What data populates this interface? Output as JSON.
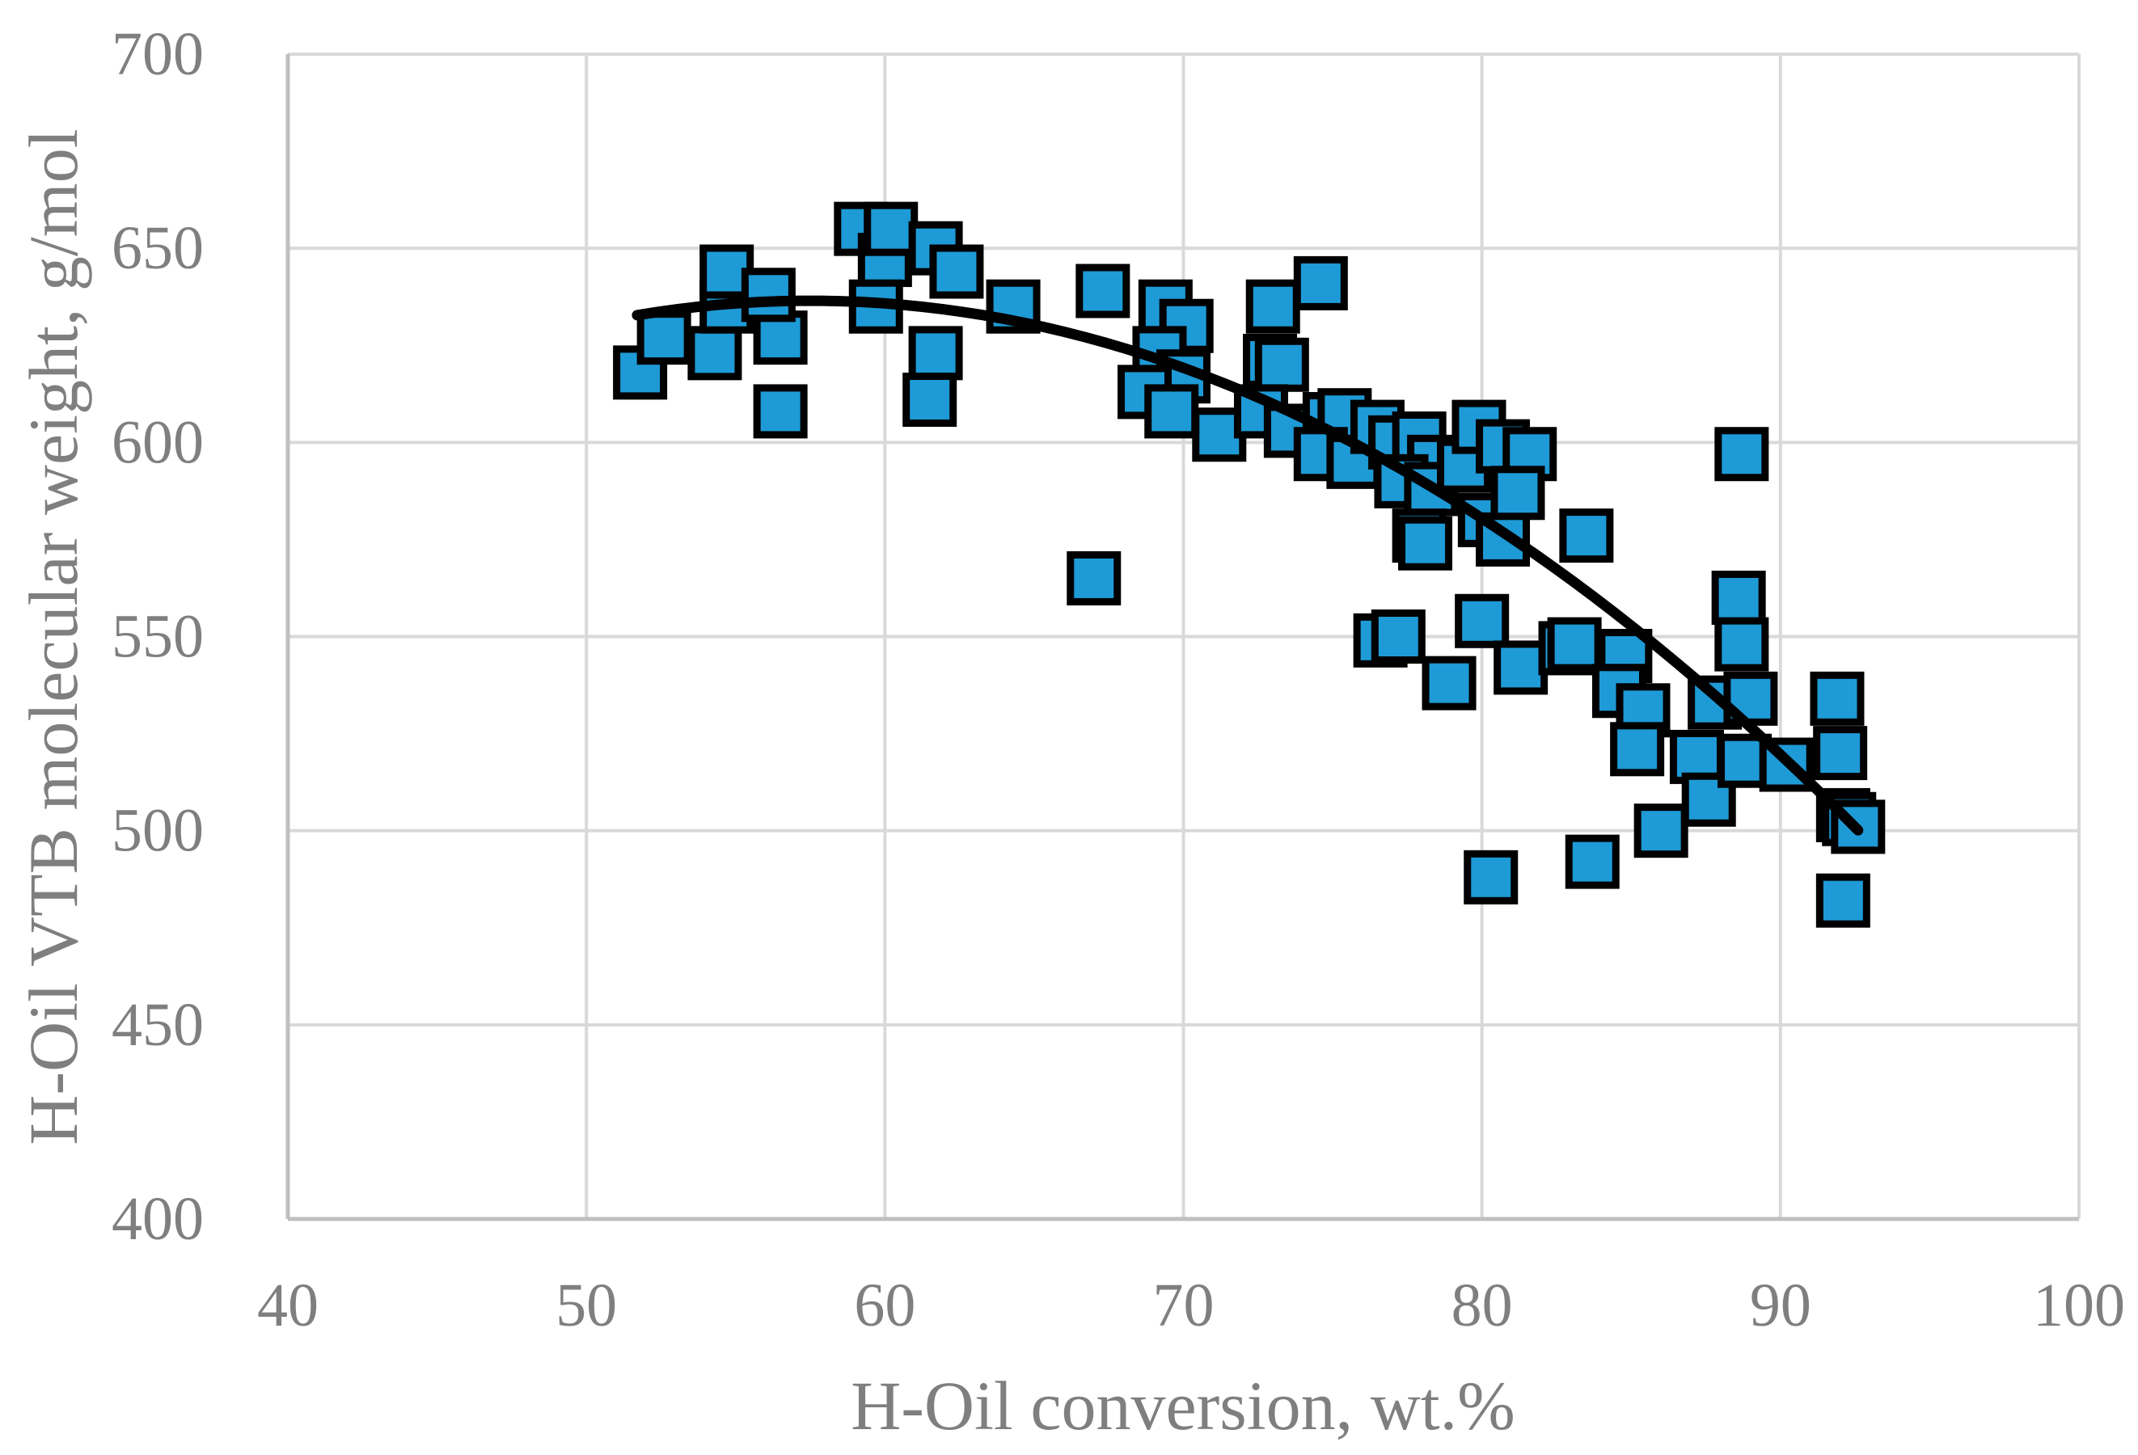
{
  "chart_data": {
    "type": "scatter",
    "title": "",
    "xlabel": "H-Oil conversion, wt.%",
    "ylabel": "H-Oil VTB molecular weight, g/mol",
    "xlim": [
      40,
      100
    ],
    "ylim": [
      400,
      700
    ],
    "x_ticks": [
      40,
      50,
      60,
      70,
      80,
      90,
      100
    ],
    "y_ticks": [
      400,
      450,
      500,
      550,
      600,
      650,
      700
    ],
    "grid": true,
    "legend_position": "none",
    "colors": {
      "marker_fill": "#1E9AD6",
      "marker_stroke": "#000000",
      "trend": "#000000",
      "grid": "#D9D9D9",
      "axis": "#BFBFBF",
      "text": "#7F7F7F"
    },
    "marker_shape": "square",
    "points": [
      [
        59.2,
        655
      ],
      [
        60.0,
        647
      ],
      [
        60.2,
        655
      ],
      [
        61.7,
        650
      ],
      [
        62.4,
        644
      ],
      [
        59.7,
        635
      ],
      [
        61.7,
        623
      ],
      [
        61.5,
        611
      ],
      [
        64.3,
        635
      ],
      [
        51.8,
        618
      ],
      [
        52.6,
        627
      ],
      [
        54.3,
        623
      ],
      [
        54.7,
        635
      ],
      [
        54.7,
        644
      ],
      [
        56.5,
        627
      ],
      [
        56.1,
        638
      ],
      [
        56.5,
        608
      ],
      [
        67.3,
        639
      ],
      [
        67.0,
        565
      ],
      [
        69.4,
        635
      ],
      [
        70.1,
        630
      ],
      [
        69.2,
        623
      ],
      [
        70.0,
        617
      ],
      [
        68.7,
        613
      ],
      [
        69.6,
        608
      ],
      [
        71.2,
        602
      ],
      [
        73.0,
        635
      ],
      [
        74.6,
        641
      ],
      [
        72.9,
        621
      ],
      [
        73.3,
        620
      ],
      [
        72.6,
        608
      ],
      [
        73.6,
        603
      ],
      [
        74.9,
        606
      ],
      [
        75.4,
        607
      ],
      [
        74.6,
        597
      ],
      [
        75.7,
        595
      ],
      [
        76.5,
        604
      ],
      [
        77.1,
        600
      ],
      [
        77.9,
        601
      ],
      [
        78.4,
        595
      ],
      [
        77.3,
        590
      ],
      [
        76.6,
        549
      ],
      [
        77.2,
        550
      ],
      [
        78.9,
        538
      ],
      [
        78.3,
        588
      ],
      [
        77.9,
        576
      ],
      [
        78.1,
        574
      ],
      [
        79.4,
        594
      ],
      [
        79.9,
        604
      ],
      [
        80.7,
        599
      ],
      [
        81.6,
        597
      ],
      [
        80.1,
        580
      ],
      [
        80.7,
        575
      ],
      [
        81.2,
        587
      ],
      [
        80.0,
        554
      ],
      [
        81.3,
        542
      ],
      [
        80.3,
        488
      ],
      [
        83.7,
        492
      ],
      [
        82.8,
        547
      ],
      [
        83.1,
        548
      ],
      [
        83.5,
        576
      ],
      [
        84.8,
        545
      ],
      [
        84.6,
        536
      ],
      [
        85.4,
        531
      ],
      [
        85.2,
        521
      ],
      [
        86.0,
        500
      ],
      [
        87.2,
        519
      ],
      [
        87.6,
        508
      ],
      [
        87.8,
        533
      ],
      [
        88.6,
        560
      ],
      [
        88.7,
        548
      ],
      [
        88.7,
        597
      ],
      [
        89.0,
        534
      ],
      [
        88.8,
        518
      ],
      [
        90.2,
        517
      ],
      [
        91.9,
        534
      ],
      [
        92.0,
        520
      ],
      [
        92.1,
        504
      ],
      [
        92.3,
        503
      ],
      [
        92.6,
        501
      ],
      [
        92.1,
        482
      ]
    ],
    "trendline": {
      "type": "quadratic",
      "vertex_x": 57.5,
      "vertex_y": 636.5,
      "a": 0.1107,
      "x_start": 51.7,
      "x_end": 92.6
    }
  }
}
